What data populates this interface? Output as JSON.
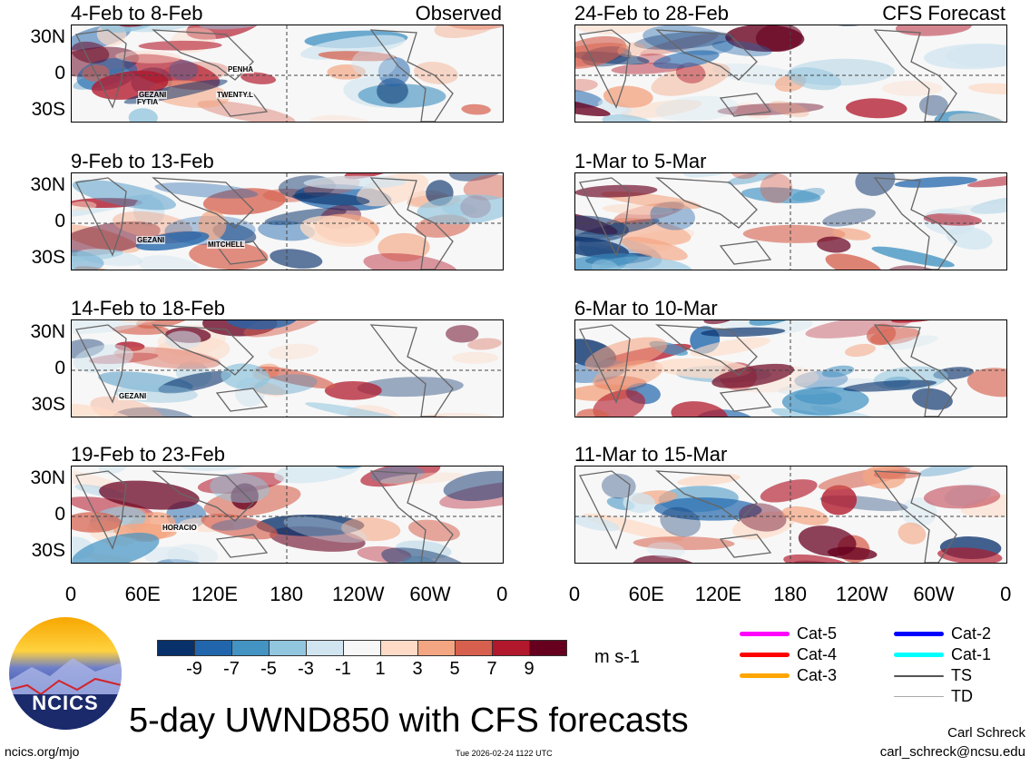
{
  "panels": [
    {
      "title": "4-Feb to 8-Feb",
      "tag": "Observed",
      "storms": [
        "PENHA",
        "GEZANI",
        "FYTIA",
        "TWENTY.L"
      ],
      "seed": 3
    },
    {
      "title": "24-Feb to 28-Feb",
      "tag": "CFS Forecast",
      "storms": [],
      "seed": 7
    },
    {
      "title": "9-Feb to 13-Feb",
      "tag": "",
      "storms": [
        "GEZANI",
        "MITCHELL"
      ],
      "seed": 11
    },
    {
      "title": "1-Mar to 5-Mar",
      "tag": "",
      "storms": [],
      "seed": 13
    },
    {
      "title": "14-Feb to 18-Feb",
      "tag": "",
      "storms": [
        "GEZANI"
      ],
      "seed": 17
    },
    {
      "title": "6-Mar to 10-Mar",
      "tag": "",
      "storms": [],
      "seed": 19
    },
    {
      "title": "19-Feb to 23-Feb",
      "tag": "",
      "storms": [
        "HORACIO"
      ],
      "seed": 23
    },
    {
      "title": "11-Mar to 15-Mar",
      "tag": "",
      "storms": [],
      "seed": 29
    }
  ],
  "y_ticks": [
    "30N",
    "0",
    "30S"
  ],
  "x_ticks": [
    "0",
    "60E",
    "120E",
    "180",
    "120W",
    "60W",
    "0"
  ],
  "colorbar": {
    "colors": [
      "#08306b",
      "#2166ac",
      "#4393c3",
      "#92c5de",
      "#d1e5f0",
      "#f7f7f7",
      "#fddbc7",
      "#f4a582",
      "#d6604d",
      "#b2182b",
      "#67001f"
    ],
    "labels": [
      "-9",
      "-7",
      "-5",
      "-3",
      "-1",
      "1",
      "3",
      "5",
      "7",
      "9"
    ],
    "units": "m s-1"
  },
  "legend": [
    {
      "label": "Cat-5",
      "color": "#ff00ff"
    },
    {
      "label": "Cat-4",
      "color": "#ff0000"
    },
    {
      "label": "Cat-3",
      "color": "#ffa500"
    },
    {
      "label": "Cat-2",
      "color": "#0000ff"
    },
    {
      "label": "Cat-1",
      "color": "#00ffff"
    },
    {
      "label": "TS",
      "color": "#555555"
    },
    {
      "label": "TD",
      "color": "#aaaaaa"
    }
  ],
  "logo": {
    "text": "NCICS"
  },
  "main_title": "5-day UWND850 with CFS forecasts",
  "author": "Carl Schreck",
  "email": "carl_schreck@ncsu.edu",
  "url": "ncics.org/mjo",
  "timestamp": "Tue 2026-02-24 1122 UTC"
}
